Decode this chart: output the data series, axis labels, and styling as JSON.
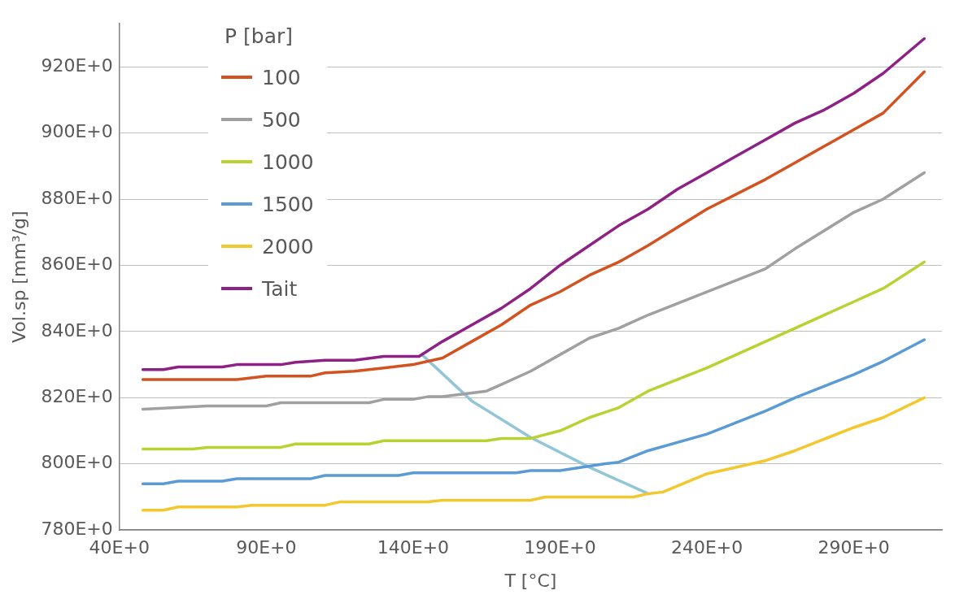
{
  "chart_data": {
    "type": "line",
    "xlabel": "T [°C]",
    "ylabel": "Vol.sp [mm³/g]",
    "legend_title": "P [bar]",
    "legend": "top left",
    "grid": "y",
    "marker": "none",
    "line_style": "solid",
    "xlim": [
      40,
      320
    ],
    "xticks": [
      {
        "value": 40,
        "label": "40E+0"
      },
      {
        "value": 90,
        "label": "90E+0"
      },
      {
        "value": 140,
        "label": "140E+0"
      },
      {
        "value": 190,
        "label": "190E+0"
      },
      {
        "value": 240,
        "label": "240E+0"
      },
      {
        "value": 290,
        "label": "290E+0"
      }
    ],
    "ylim": [
      780,
      933
    ],
    "yticks": [
      {
        "value": 780,
        "label": "780E+0"
      },
      {
        "value": 800,
        "label": "800E+0"
      },
      {
        "value": 820,
        "label": "820E+0"
      },
      {
        "value": 840,
        "label": "840E+0"
      },
      {
        "value": 860,
        "label": "860E+0"
      },
      {
        "value": 880,
        "label": "880E+0"
      },
      {
        "value": 900,
        "label": "900E+0"
      },
      {
        "value": 920,
        "label": "920E+0"
      }
    ],
    "series": [
      {
        "name": "100",
        "color": "#d35220",
        "x": [
          48,
          60,
          80,
          90,
          105,
          110,
          120,
          130,
          140,
          150,
          160,
          170,
          180,
          190,
          200,
          210,
          220,
          240,
          260,
          270,
          290,
          300,
          314
        ],
        "values": [
          825.5,
          825.5,
          825.5,
          826.5,
          826.5,
          827.5,
          828,
          829,
          830,
          832,
          837,
          842,
          848,
          852,
          857,
          861,
          866,
          877,
          886,
          891,
          901,
          906,
          918.5
        ]
      },
      {
        "name": "500",
        "color": "#a0a0a0",
        "x": [
          48,
          70,
          90,
          95,
          125,
          130,
          140,
          145,
          150,
          165,
          170,
          180,
          190,
          200,
          210,
          220,
          240,
          260,
          270,
          290,
          300,
          314
        ],
        "values": [
          816.5,
          817.5,
          817.5,
          818.5,
          818.5,
          819.5,
          819.5,
          820.3,
          820.3,
          822,
          824,
          828,
          833,
          838,
          841,
          845,
          852,
          859,
          865,
          876,
          880,
          888
        ]
      },
      {
        "name": "1000",
        "color": "#b9d232",
        "x": [
          48,
          65,
          70,
          95,
          100,
          125,
          130,
          165,
          170,
          180,
          190,
          200,
          210,
          220,
          240,
          260,
          270,
          290,
          300,
          314
        ],
        "values": [
          804.5,
          804.5,
          805,
          805,
          806,
          806,
          807,
          807,
          807.7,
          807.7,
          810,
          814,
          817,
          822,
          829,
          837,
          841,
          849,
          853,
          861
        ]
      },
      {
        "name": "1500",
        "color": "#5b9bd5",
        "x": [
          48,
          55,
          60,
          75,
          80,
          105,
          110,
          135,
          140,
          175,
          180,
          190,
          205,
          210,
          220,
          240,
          260,
          270,
          290,
          300,
          314
        ],
        "values": [
          794,
          794,
          794.8,
          794.8,
          795.5,
          795.5,
          796.5,
          796.5,
          797.3,
          797.3,
          798,
          798,
          800,
          800.5,
          804,
          809,
          816,
          820,
          827,
          831,
          837.5
        ]
      },
      {
        "name": "2000",
        "color": "#f2c82e",
        "x": [
          48,
          55,
          60,
          80,
          85,
          110,
          115,
          145,
          150,
          180,
          185,
          215,
          220,
          225,
          240,
          260,
          270,
          290,
          300,
          314
        ],
        "values": [
          786,
          786,
          787,
          787,
          787.5,
          787.5,
          788.5,
          788.5,
          789,
          789,
          790,
          790,
          791,
          791.5,
          797,
          801,
          804,
          811,
          814,
          820
        ]
      },
      {
        "name": "Tait",
        "color": "#8e2185",
        "x": [
          48,
          55,
          60,
          75,
          80,
          95,
          100,
          110,
          120,
          130,
          142,
          150,
          160,
          170,
          180,
          190,
          200,
          210,
          220,
          230,
          240,
          250,
          260,
          270,
          280,
          290,
          300,
          314
        ],
        "values": [
          828.5,
          828.5,
          829.3,
          829.3,
          830,
          830,
          830.7,
          831.3,
          831.3,
          832.5,
          832.5,
          837,
          842,
          847,
          853,
          860,
          866,
          872,
          877,
          883,
          888,
          893,
          898,
          903,
          907,
          912,
          918,
          928.5
        ]
      },
      {
        "color": "#92c5d6",
        "x": [
          143,
          160,
          180,
          200,
          220
        ],
        "values": [
          833,
          819,
          808,
          799,
          791
        ]
      }
    ]
  }
}
